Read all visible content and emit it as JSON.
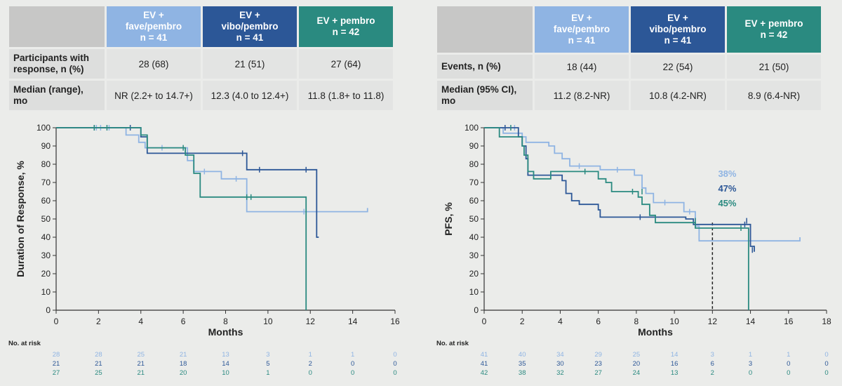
{
  "colors": {
    "fave": "#8fb4e3",
    "vibo": "#2c5797",
    "pembro": "#2a8a80"
  },
  "left": {
    "table": {
      "columns": [
        {
          "key": "fave",
          "line1": "EV +",
          "line2": "fave/pembro",
          "line3": "n = 41"
        },
        {
          "key": "vibo",
          "line1": "EV +",
          "line2": "vibo/pembro",
          "line3": "n = 41"
        },
        {
          "key": "pembro",
          "line1": "EV + pembro",
          "line2": "n = 42",
          "line3": ""
        }
      ],
      "rows": [
        {
          "label1": "Participants with",
          "label2": "response, n (%)",
          "values": [
            "28 (68)",
            "21 (51)",
            "27 (64)"
          ]
        },
        {
          "label1": "Median (range),",
          "label2": "mo",
          "values": [
            "NR (2.2+ to 14.7+)",
            "12.3 (4.0 to 12.4+)",
            "11.8 (1.8+ to 11.8)"
          ]
        }
      ]
    }
  },
  "right": {
    "table": {
      "columns": [
        {
          "key": "fave",
          "line1": "EV +",
          "line2": "fave/pembro",
          "line3": "n = 41"
        },
        {
          "key": "vibo",
          "line1": "EV +",
          "line2": "vibo/pembro",
          "line3": "n = 41"
        },
        {
          "key": "pembro",
          "line1": "EV + pembro",
          "line2": "n = 42",
          "line3": ""
        }
      ],
      "rows": [
        {
          "label1": "Events, n (%)",
          "label2": "",
          "values": [
            "18 (44)",
            "22 (54)",
            "21 (50)"
          ]
        },
        {
          "label1": "Median (95% CI),",
          "label2": "mo",
          "values": [
            "11.2 (8.2-NR)",
            "10.8 (4.2-NR)",
            "8.9 (6.4-NR)"
          ]
        }
      ]
    }
  },
  "chart_data": [
    {
      "type": "line",
      "step": true,
      "xlabel": "Months",
      "ylabel": "Duration of Response, %",
      "xlim": [
        0,
        16
      ],
      "ylim": [
        0,
        100
      ],
      "xticks": [
        0,
        2,
        4,
        6,
        8,
        10,
        12,
        14,
        16
      ],
      "yticks": [
        0,
        10,
        20,
        30,
        40,
        50,
        60,
        70,
        80,
        90,
        100
      ],
      "grid": false,
      "series": [
        {
          "key": "fave",
          "color": "#8fb4e3",
          "points": [
            [
              0,
              100
            ],
            [
              3.3,
              96
            ],
            [
              3.9,
              92
            ],
            [
              4.2,
              89
            ],
            [
              6.2,
              82
            ],
            [
              6.5,
              76
            ],
            [
              7.8,
              72
            ],
            [
              9.0,
              54
            ],
            [
              14.7,
              54
            ],
            [
              14.7,
              56
            ]
          ],
          "censors": [
            [
              1.9,
              100
            ],
            [
              2.1,
              100
            ],
            [
              2.5,
              100
            ],
            [
              5.0,
              89
            ],
            [
              7.0,
              76
            ],
            [
              8.5,
              72
            ],
            [
              11.7,
              54
            ]
          ]
        },
        {
          "key": "vibo",
          "color": "#2c5797",
          "points": [
            [
              0,
              100
            ],
            [
              4.0,
              95
            ],
            [
              4.3,
              86
            ],
            [
              6.2,
              86
            ],
            [
              9.0,
              77
            ],
            [
              12.3,
              77
            ],
            [
              12.3,
              40
            ],
            [
              12.4,
              40
            ]
          ],
          "censors": [
            [
              1.8,
              100
            ],
            [
              3.5,
              100
            ],
            [
              8.8,
              86
            ],
            [
              9.6,
              77
            ],
            [
              11.8,
              77
            ]
          ]
        },
        {
          "key": "pembro",
          "color": "#2a8a80",
          "points": [
            [
              0,
              100
            ],
            [
              4.0,
              96
            ],
            [
              4.3,
              89
            ],
            [
              6.1,
              85
            ],
            [
              6.5,
              75
            ],
            [
              6.8,
              62
            ],
            [
              11.8,
              62
            ],
            [
              11.8,
              0
            ]
          ],
          "censors": [
            [
              1.8,
              100
            ],
            [
              2.4,
              100
            ],
            [
              6.0,
              89
            ],
            [
              9.0,
              62
            ],
            [
              9.2,
              62
            ]
          ]
        }
      ],
      "risk_title": "No. at risk",
      "risk_x": [
        0,
        2,
        4,
        6,
        8,
        10,
        12,
        14,
        16
      ],
      "risk": {
        "fave": [
          "28",
          "28",
          "25",
          "21",
          "13",
          "3",
          "1",
          "1",
          "0"
        ],
        "vibo": [
          "21",
          "21",
          "21",
          "18",
          "14",
          "5",
          "2",
          "0",
          "0"
        ],
        "pembro": [
          "27",
          "25",
          "21",
          "20",
          "10",
          "1",
          "0",
          "0",
          "0"
        ]
      }
    },
    {
      "type": "line",
      "step": true,
      "xlabel": "Months",
      "ylabel": "PFS, %",
      "xlim": [
        0,
        18
      ],
      "ylim": [
        0,
        100
      ],
      "xticks": [
        0,
        2,
        4,
        6,
        8,
        10,
        12,
        14,
        16,
        18
      ],
      "yticks": [
        0,
        10,
        20,
        30,
        40,
        50,
        60,
        70,
        80,
        90,
        100
      ],
      "grid": false,
      "reference_x": 12,
      "annotations": [
        {
          "text": "38%",
          "key": "fave",
          "x": 12.3,
          "y": 73
        },
        {
          "text": "47%",
          "key": "vibo",
          "x": 12.3,
          "y": 65
        },
        {
          "text": "45%",
          "key": "pembro",
          "x": 12.3,
          "y": 57
        }
      ],
      "series": [
        {
          "key": "fave",
          "color": "#8fb4e3",
          "points": [
            [
              0,
              100
            ],
            [
              1.0,
              97
            ],
            [
              2.0,
              95
            ],
            [
              2.2,
              92
            ],
            [
              3.4,
              90
            ],
            [
              3.7,
              86
            ],
            [
              4.1,
              83
            ],
            [
              4.5,
              79
            ],
            [
              6.1,
              77
            ],
            [
              7.9,
              74
            ],
            [
              8.3,
              67
            ],
            [
              8.5,
              64
            ],
            [
              8.9,
              59
            ],
            [
              10.5,
              54
            ],
            [
              11.1,
              46
            ],
            [
              11.3,
              38
            ],
            [
              16.6,
              38
            ],
            [
              16.6,
              40
            ]
          ],
          "censors": [
            [
              1.6,
              100
            ],
            [
              5.0,
              79
            ],
            [
              7.0,
              77
            ],
            [
              9.5,
              59
            ],
            [
              10.8,
              54
            ]
          ]
        },
        {
          "key": "vibo",
          "color": "#2c5797",
          "points": [
            [
              0,
              100
            ],
            [
              1.8,
              95
            ],
            [
              2.0,
              90
            ],
            [
              2.2,
              83
            ],
            [
              2.3,
              74
            ],
            [
              4.1,
              71
            ],
            [
              4.3,
              64
            ],
            [
              4.6,
              60
            ],
            [
              5.0,
              58
            ],
            [
              6.0,
              55
            ],
            [
              6.1,
              51
            ],
            [
              8.5,
              51
            ],
            [
              10.6,
              50
            ],
            [
              11.0,
              47
            ],
            [
              14.0,
              47
            ],
            [
              14.0,
              35
            ],
            [
              14.2,
              32
            ]
          ],
          "censors": [
            [
              1.1,
              100
            ],
            [
              8.2,
              51
            ],
            [
              13.7,
              47
            ],
            [
              13.8,
              49
            ],
            [
              14.1,
              33
            ]
          ]
        },
        {
          "key": "pembro",
          "color": "#2a8a80",
          "points": [
            [
              0,
              100
            ],
            [
              0.8,
              95
            ],
            [
              2.0,
              90
            ],
            [
              2.1,
              85
            ],
            [
              2.3,
              76
            ],
            [
              2.6,
              72
            ],
            [
              3.5,
              76
            ],
            [
              4.2,
              76
            ],
            [
              5.6,
              76
            ],
            [
              6.0,
              72
            ],
            [
              6.4,
              70
            ],
            [
              6.7,
              65
            ],
            [
              8.1,
              62
            ],
            [
              8.3,
              58
            ],
            [
              8.7,
              52
            ],
            [
              9.0,
              48
            ],
            [
              10.6,
              48
            ],
            [
              11.1,
              45
            ],
            [
              13.9,
              45
            ],
            [
              13.9,
              0
            ]
          ],
          "censors": [
            [
              1.4,
              100
            ],
            [
              5.3,
              76
            ],
            [
              7.8,
              65
            ],
            [
              8.3,
              65
            ],
            [
              11.1,
              49
            ],
            [
              13.5,
              45
            ]
          ]
        }
      ],
      "risk_title": "No. at risk",
      "risk_x": [
        0,
        2,
        4,
        6,
        8,
        10,
        12,
        14,
        16,
        18
      ],
      "risk": {
        "fave": [
          "41",
          "40",
          "34",
          "29",
          "25",
          "14",
          "3",
          "1",
          "1",
          "0"
        ],
        "vibo": [
          "41",
          "35",
          "30",
          "23",
          "20",
          "16",
          "6",
          "3",
          "0",
          "0"
        ],
        "pembro": [
          "42",
          "38",
          "32",
          "27",
          "24",
          "13",
          "2",
          "0",
          "0",
          "0"
        ]
      }
    }
  ]
}
